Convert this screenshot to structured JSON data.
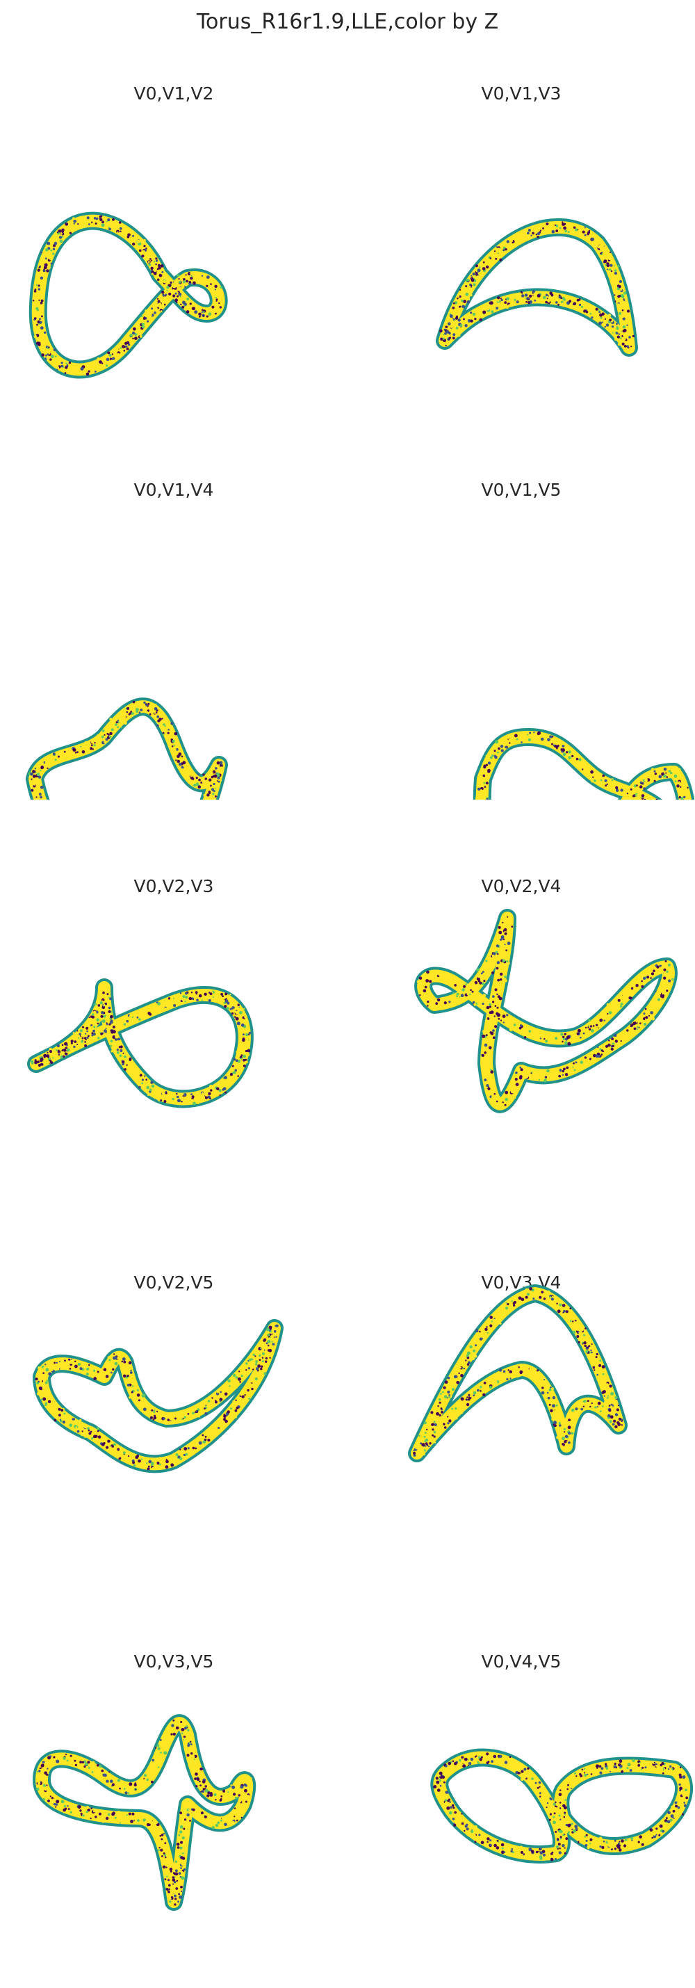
{
  "suptitle": "Torus_R16r1.9,LLE,color by Z",
  "colormap": {
    "name": "viridis",
    "stops": [
      "#440154",
      "#3b528b",
      "#21918c",
      "#5ec962",
      "#fde725"
    ]
  },
  "chart_data": [
    {
      "type": "scatter",
      "title": "V0,V1,V2",
      "axes": "off",
      "grid": false
    },
    {
      "type": "scatter",
      "title": "V0,V1,V3",
      "axes": "off",
      "grid": false
    },
    {
      "type": "scatter",
      "title": "V0,V1,V4",
      "axes": "off",
      "grid": false
    },
    {
      "type": "scatter",
      "title": "V0,V1,V5",
      "axes": "off",
      "grid": false
    },
    {
      "type": "scatter",
      "title": "V0,V2,V3",
      "axes": "off",
      "grid": false
    },
    {
      "type": "scatter",
      "title": "V0,V2,V4",
      "axes": "off",
      "grid": false
    },
    {
      "type": "scatter",
      "title": "V0,V2,V5",
      "axes": "off",
      "grid": false
    },
    {
      "type": "scatter",
      "title": "V0,V3,V4",
      "axes": "off",
      "grid": false
    },
    {
      "type": "scatter",
      "title": "V0,V3,V5",
      "axes": "off",
      "grid": false
    },
    {
      "type": "scatter",
      "title": "V0,V4,V5",
      "axes": "off",
      "grid": false
    }
  ]
}
